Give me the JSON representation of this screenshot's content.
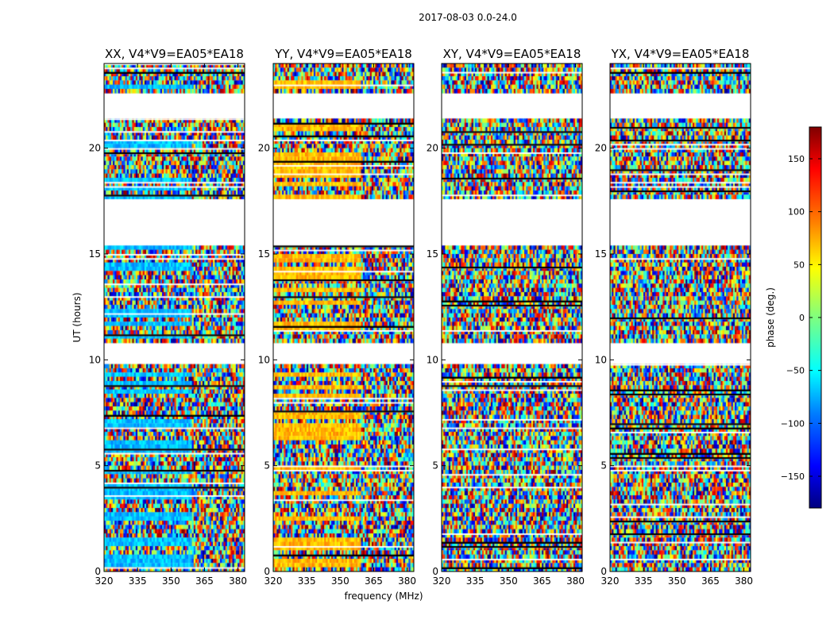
{
  "figure": {
    "suptitle": "2017-08-03 0.0-24.0",
    "xlabel": "frequency (MHz)",
    "ylabel": "UT (hours)"
  },
  "colorbar": {
    "label": "phase (deg.)",
    "range": [
      -180,
      180
    ],
    "ticks": [
      -150,
      -100,
      -50,
      0,
      50,
      100,
      150
    ],
    "tick_labels": [
      "−150",
      "−100",
      "−50",
      "0",
      "50",
      "100",
      "150"
    ],
    "colormap": "jet",
    "colors": [
      "#00007f",
      "#0000ff",
      "#007fff",
      "#00ffff",
      "#7fff7f",
      "#ffff00",
      "#ff7f00",
      "#ff0000",
      "#7f0000"
    ]
  },
  "chart_data": {
    "type": "heatmap",
    "value_label": "phase (deg.)",
    "xlim": [
      320,
      383
    ],
    "ylim": [
      0,
      24
    ],
    "xticks": [
      320,
      335,
      350,
      365,
      380
    ],
    "xtick_labels": [
      "320",
      "335",
      "350",
      "365",
      "380"
    ],
    "yticks": [
      0,
      5,
      10,
      15,
      20
    ],
    "ytick_labels": [
      "0",
      "5",
      "10",
      "15",
      "20"
    ],
    "blank_ut_ranges": [
      [
        9.8,
        10.7
      ],
      [
        15.4,
        17.6
      ],
      [
        21.5,
        22.6
      ]
    ],
    "panels": [
      {
        "title": "XX, V4*V9=EA05*EA18",
        "polarization": "XX",
        "typical_phase_deg": -70
      },
      {
        "title": "YY, V4*V9=EA05*EA18",
        "polarization": "YY",
        "typical_phase_deg": 70
      },
      {
        "title": "XY, V4*V9=EA05*EA18",
        "polarization": "XY",
        "typical_phase_deg": null
      },
      {
        "title": "YX, V4*V9=EA05*EA18",
        "polarization": "YX",
        "typical_phase_deg": null
      }
    ]
  }
}
